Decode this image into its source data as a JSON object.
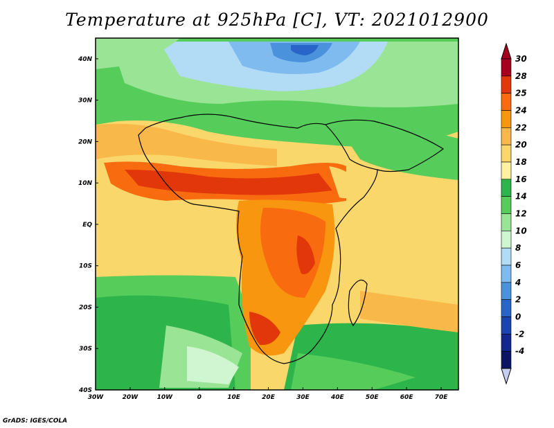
{
  "title": "Temperature at 925hPa [C], VT: 2021012900",
  "footer": "GrADS: IGES/COLA",
  "map": {
    "lat_labels": [
      "40N",
      "30N",
      "20N",
      "10N",
      "EQ",
      "10S",
      "20S",
      "30S",
      "40S"
    ],
    "lon_labels": [
      "30W",
      "20W",
      "10W",
      "0",
      "10E",
      "20E",
      "30E",
      "40E",
      "50E",
      "60E",
      "70E"
    ],
    "lat_range": [
      -40,
      45
    ],
    "lon_range": [
      -30,
      75
    ]
  },
  "colorbar": {
    "labels": [
      "30",
      "28",
      "25",
      "24",
      "22",
      "20",
      "18",
      "16",
      "14",
      "12",
      "10",
      "8",
      "6",
      "4",
      "2",
      "0",
      "-2",
      "-4"
    ],
    "colors": [
      "#a5001e",
      "#e2370a",
      "#f86c0f",
      "#f9960f",
      "#f9b94a",
      "#fad76b",
      "#fdf2a2",
      "#2db44a",
      "#56cc5a",
      "#9ae495",
      "#d0f5d1",
      "#b2dcf6",
      "#7fbbee",
      "#4b92dc",
      "#2965c8",
      "#1a44b0",
      "#13288f",
      "#0a1460",
      "#c6ccf2"
    ]
  }
}
